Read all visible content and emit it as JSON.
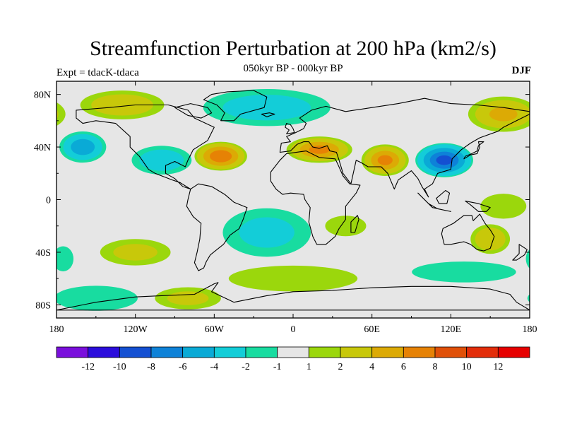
{
  "chart_data": {
    "type": "contour map",
    "title": "Streamfunction Perturbation at 200 hPa (km2/s)",
    "subtitle": "050kyr BP - 000kyr BP",
    "left_label": "Expt = tdacK-tdaca",
    "right_label": "DJF",
    "x_ticks": [
      "180",
      "120W",
      "60W",
      "0",
      "60E",
      "120E",
      "180"
    ],
    "x_values": [
      -180,
      -120,
      -60,
      0,
      60,
      120,
      180
    ],
    "y_ticks": [
      "80N",
      "40N",
      "0",
      "40S",
      "80S"
    ],
    "y_values": [
      80,
      40,
      0,
      -40,
      -80
    ],
    "lon_range": [
      -180,
      180
    ],
    "lat_range": [
      -90,
      90
    ],
    "colorbar": {
      "levels": [
        "-12",
        "-10",
        "-8",
        "-6",
        "-4",
        "-2",
        "-1",
        "1",
        "2",
        "4",
        "6",
        "8",
        "10",
        "12"
      ],
      "colors": [
        "#7a0fdc",
        "#2b0ddc",
        "#1450d2",
        "#0e82d8",
        "#0aaad6",
        "#13cdd8",
        "#18dca0",
        "#e6e6e6",
        "#9bd70c",
        "#c8c80a",
        "#dcaa05",
        "#e68205",
        "#e05008",
        "#e32d0a",
        "#e60000"
      ]
    },
    "anomalies": [
      {
        "lon": -55,
        "lat": 33,
        "value": 7,
        "rx": 20,
        "ry": 11
      },
      {
        "lon": -160,
        "lat": 40,
        "value": -5,
        "rx": 18,
        "ry": 12
      },
      {
        "lon": 115,
        "lat": 30,
        "value": -8,
        "rx": 22,
        "ry": 13
      },
      {
        "lon": 20,
        "lat": 38,
        "value": 6,
        "rx": 25,
        "ry": 10
      },
      {
        "lon": 70,
        "lat": 30,
        "value": 6,
        "rx": 18,
        "ry": 12
      },
      {
        "lon": -20,
        "lat": 70,
        "value": -2.5,
        "rx": 55,
        "ry": 16
      },
      {
        "lon": 160,
        "lat": 65,
        "value": 4,
        "rx": 28,
        "ry": 14
      },
      {
        "lon": -130,
        "lat": 72,
        "value": 3,
        "rx": 35,
        "ry": 12
      },
      {
        "lon": -100,
        "lat": 30,
        "value": -3,
        "rx": 25,
        "ry": 12
      },
      {
        "lon": -20,
        "lat": -25,
        "value": -2,
        "rx": 40,
        "ry": 22
      },
      {
        "lon": 160,
        "lat": -5,
        "value": 1.6,
        "rx": 22,
        "ry": 12
      },
      {
        "lon": -120,
        "lat": -40,
        "value": 2,
        "rx": 32,
        "ry": 12
      },
      {
        "lon": 150,
        "lat": -30,
        "value": 3.5,
        "rx": 16,
        "ry": 12
      },
      {
        "lon": 40,
        "lat": -20,
        "value": 1.5,
        "rx": 20,
        "ry": 10
      },
      {
        "lon": -150,
        "lat": -75,
        "value": -1.6,
        "rx": 40,
        "ry": 12
      },
      {
        "lon": -80,
        "lat": -75,
        "value": 2,
        "rx": 30,
        "ry": 10
      },
      {
        "lon": 0,
        "lat": -60,
        "value": 1.8,
        "rx": 60,
        "ry": 12
      },
      {
        "lon": 130,
        "lat": -55,
        "value": -1.6,
        "rx": 50,
        "ry": 10
      },
      {
        "lon": -175,
        "lat": -45,
        "value": -1.6,
        "rx": 10,
        "ry": 12
      }
    ]
  }
}
